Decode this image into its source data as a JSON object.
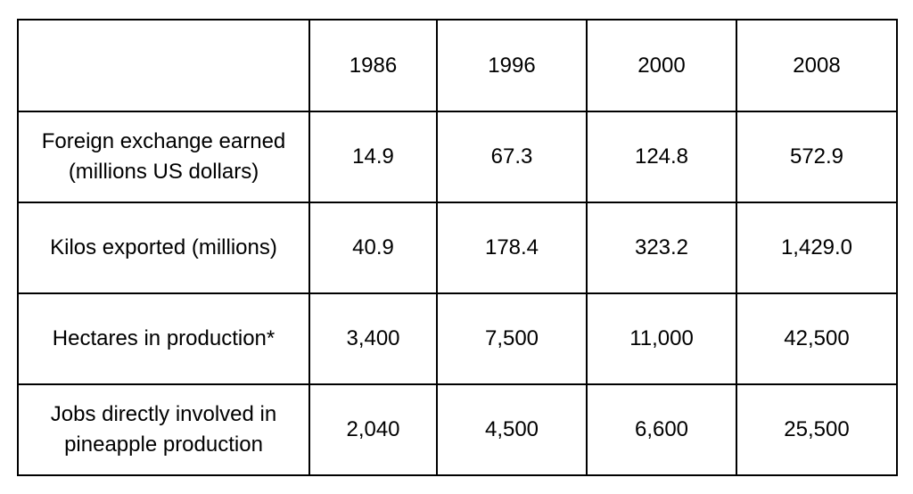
{
  "chart_data": {
    "type": "table",
    "columns": [
      "",
      "1986",
      "1996",
      "2000",
      "2008"
    ],
    "rows": [
      {
        "label_lines": [
          "Foreign exchange earned",
          "(millions US dollars)"
        ],
        "values": [
          "14.9",
          "67.3",
          "124.8",
          "572.9"
        ]
      },
      {
        "label_lines": [
          "Kilos exported (millions)"
        ],
        "values": [
          "40.9",
          "178.4",
          "323.2",
          "1,429.0"
        ]
      },
      {
        "label_lines": [
          "Hectares in production*"
        ],
        "values": [
          "3,400",
          "7,500",
          "11,000",
          "42,500"
        ]
      },
      {
        "label_lines": [
          "Jobs directly involved in",
          "pineapple production"
        ],
        "values": [
          "2,040",
          "4,500",
          "6,600",
          "25,500"
        ]
      }
    ]
  }
}
